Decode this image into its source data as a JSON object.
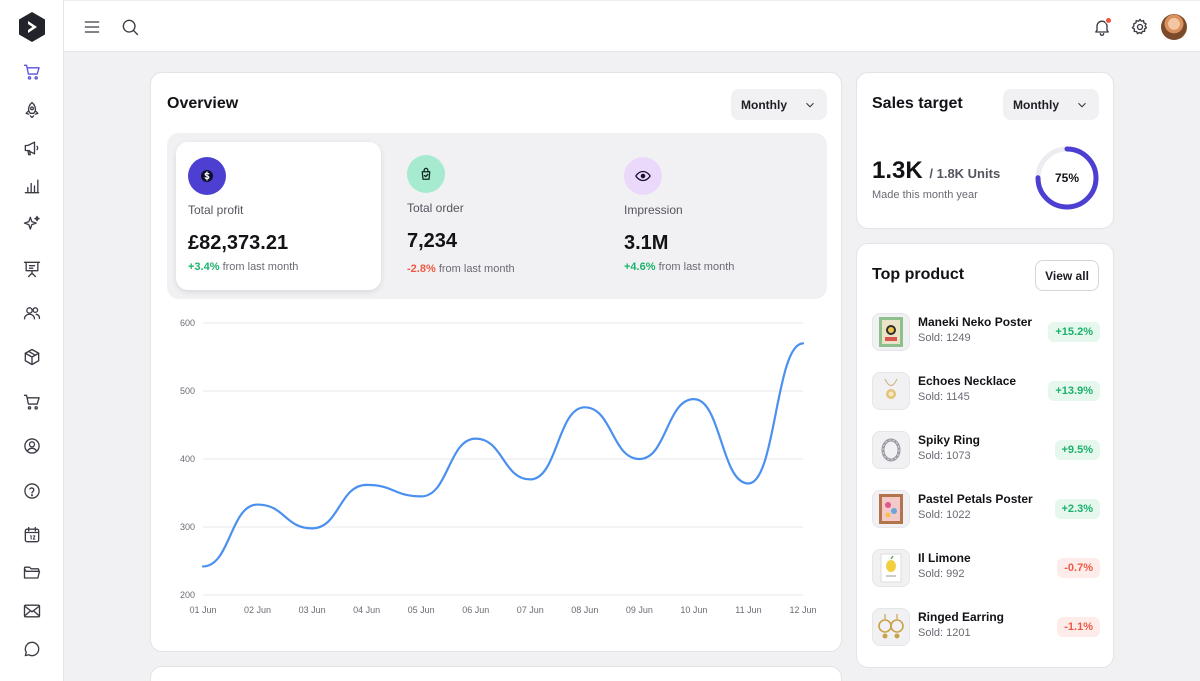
{
  "overview": {
    "title": "Overview",
    "period": "Monthly",
    "stats": [
      {
        "label": "Total profit",
        "value": "£82,373.21",
        "change": "+3.4%",
        "change_text": "from last month",
        "direction": "up",
        "icon": "dollar-icon",
        "icon_bg": "#4c3fd1"
      },
      {
        "label": "Total order",
        "value": "7,234",
        "change": "-2.8%",
        "change_text": "from last month",
        "direction": "down",
        "icon": "shopping-bag-icon",
        "icon_bg": "#a6ead0"
      },
      {
        "label": "Impression",
        "value": "3.1M",
        "change": "+4.6%",
        "change_text": "from last month",
        "direction": "up",
        "icon": "eye-icon",
        "icon_bg": "#ead9fb"
      }
    ]
  },
  "chart_data": {
    "type": "line",
    "x": [
      "01 Jun",
      "02 Jun",
      "03 Jun",
      "04 Jun",
      "05 Jun",
      "06 Jun",
      "07 Jun",
      "08 Jun",
      "09 Jun",
      "10 Jun",
      "11 Jun",
      "12 Jun"
    ],
    "series": [
      {
        "values": [
          242,
          333,
          298,
          362,
          345,
          430,
          370,
          476,
          400,
          488,
          364,
          570
        ]
      }
    ],
    "yticks": [
      200,
      300,
      400,
      500,
      600
    ],
    "ylim": [
      200,
      600
    ],
    "grid": true,
    "color": "#4a90f0"
  },
  "sales_target": {
    "title": "Sales target",
    "period": "Monthly",
    "value": "1.3K",
    "target": "/ 1.8K Units",
    "subtitle": "Made this month year",
    "percent_label": "75%",
    "percent": 0.75,
    "ring_color": "#4c3fd1"
  },
  "top_product": {
    "title": "Top product",
    "view_all": "View all",
    "items": [
      {
        "name": "Maneki Neko Poster",
        "sold": "Sold: 1249",
        "change": "+15.2%",
        "direction": "up"
      },
      {
        "name": "Echoes Necklace",
        "sold": "Sold: 1145",
        "change": "+13.9%",
        "direction": "up"
      },
      {
        "name": "Spiky Ring",
        "sold": "Sold: 1073",
        "change": "+9.5%",
        "direction": "up"
      },
      {
        "name": "Pastel Petals Poster",
        "sold": "Sold: 1022",
        "change": "+2.3%",
        "direction": "up"
      },
      {
        "name": "Il Limone",
        "sold": "Sold: 992",
        "change": "-0.7%",
        "direction": "down"
      },
      {
        "name": "Ringed Earring",
        "sold": "Sold: 1201",
        "change": "-1.1%",
        "direction": "down"
      }
    ]
  },
  "colors": {
    "accent": "#5b4fe0",
    "positive": "#1bb26b",
    "negative": "#ee5a43"
  }
}
